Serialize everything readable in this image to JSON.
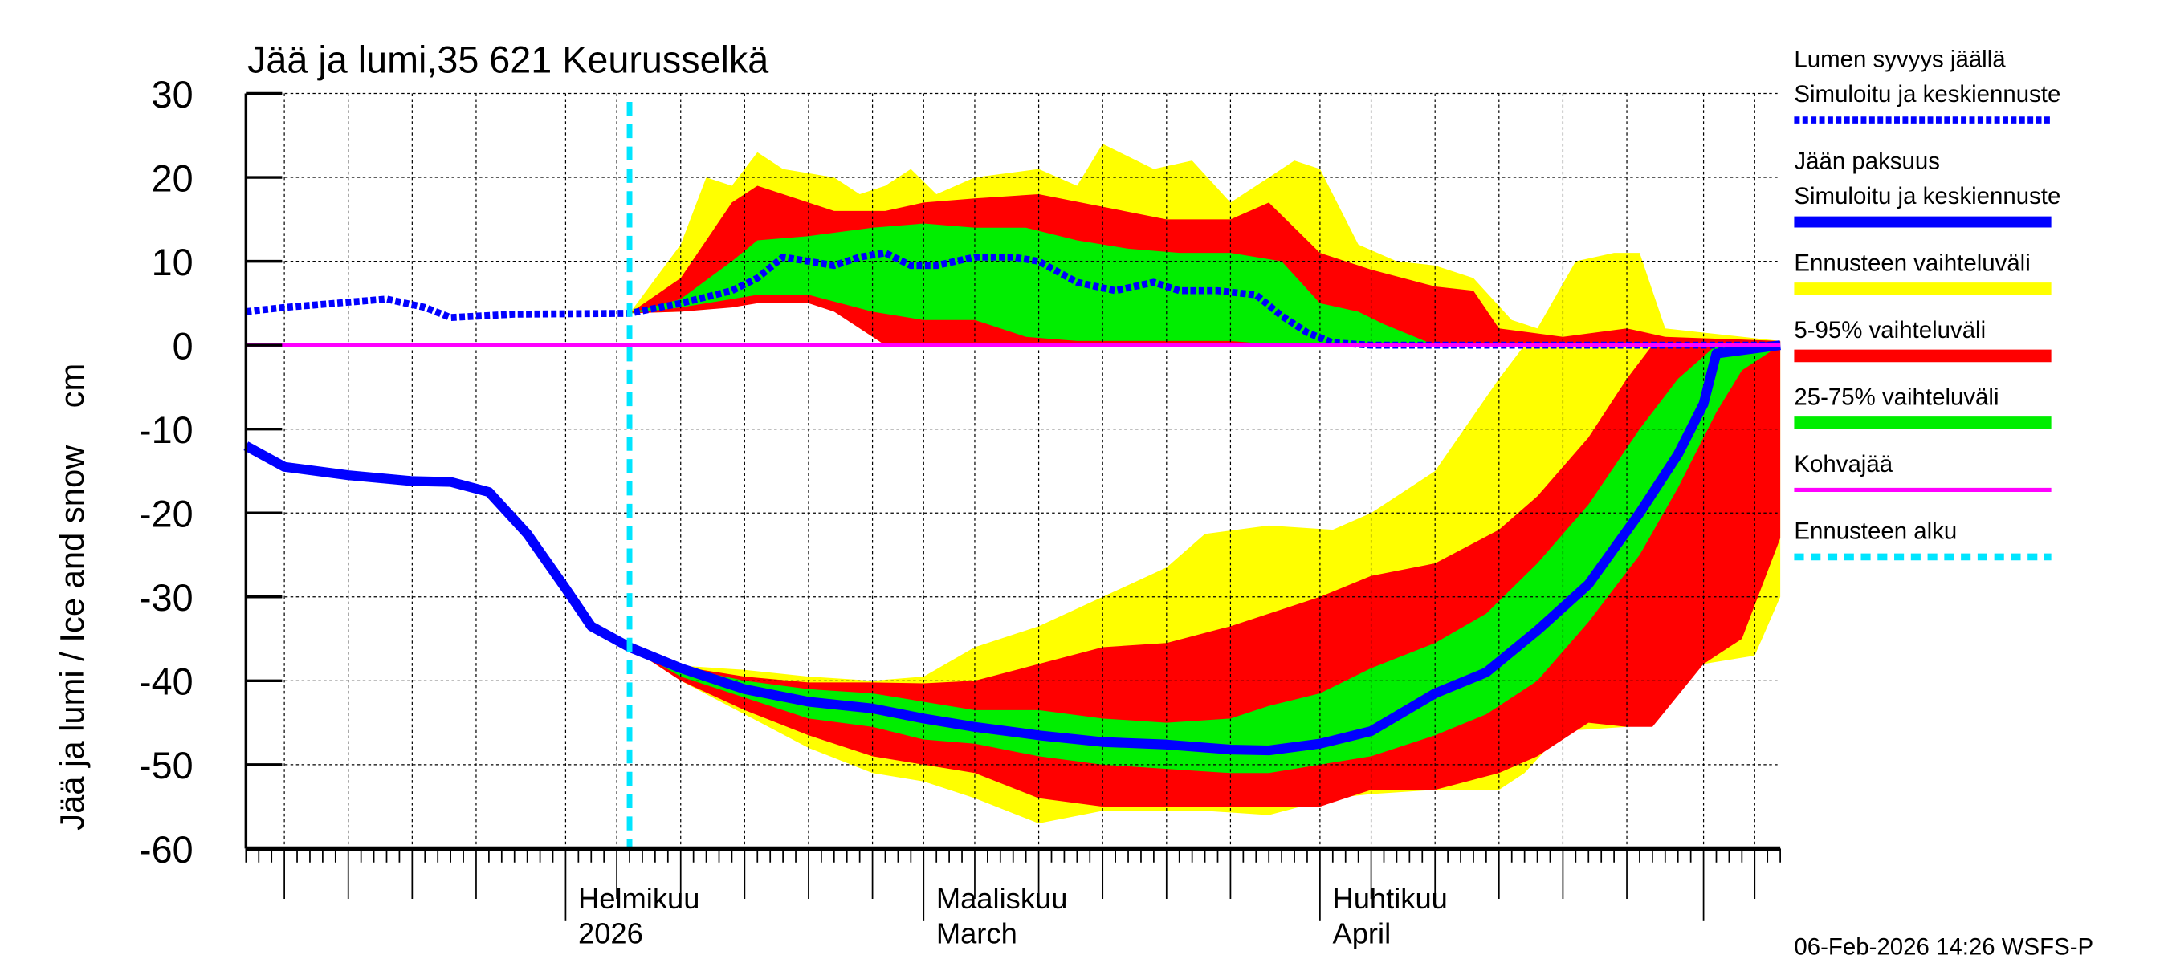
{
  "chart_data": {
    "type": "area",
    "title": "Jää ja lumi,35 621 Keurusselkä",
    "ylabel": "Jää ja lumi / Ice and snow    cm",
    "ylim": [
      -60,
      30
    ],
    "yticks": [
      30,
      20,
      10,
      0,
      -10,
      -20,
      -30,
      -40,
      -50,
      -60
    ],
    "xlim": [
      "2026-01-07",
      "2026-05-07"
    ],
    "month_labels": [
      {
        "date": "2026-02-01",
        "line1": "Helmikuu",
        "line2": "2026"
      },
      {
        "date": "2026-03-01",
        "line1": "Maaliskuu",
        "line2": "March"
      },
      {
        "date": "2026-04-01",
        "line1": "Huhtikuu",
        "line2": "April"
      }
    ],
    "grid": true,
    "forecast_start": "2026-02-06",
    "timestamp": "06-Feb-2026 14:26 WSFS-P",
    "legend_position": "right",
    "legend": [
      {
        "key": "snow",
        "line1": "Lumen syvyys jäällä",
        "line2": "Simuloitu ja keskiennuste",
        "color": "#0000ff",
        "style": "dotted"
      },
      {
        "key": "ice",
        "line1": "Jään paksuus",
        "line2": "Simuloitu ja keskiennuste",
        "color": "#0000ff",
        "style": "solid"
      },
      {
        "key": "range",
        "line1": "Ennusteen vaihteluväli",
        "color": "#ffff00",
        "style": "band"
      },
      {
        "key": "p5_95",
        "line1": "5-95% vaihteluväli",
        "color": "#ff0000",
        "style": "band"
      },
      {
        "key": "p25_75",
        "line1": "25-75% vaihteluväli",
        "color": "#00ee00",
        "style": "band"
      },
      {
        "key": "slush",
        "line1": "Kohvajää",
        "color": "#ff00ff",
        "style": "solid"
      },
      {
        "key": "start",
        "line1": "Ennusteen alku",
        "color": "#00e5ff",
        "style": "dashed"
      }
    ],
    "bands": {
      "snow_range": [
        [
          "2026-02-06",
          3.8,
          3.8
        ],
        [
          "2026-02-10",
          4,
          12
        ],
        [
          "2026-02-12",
          4.5,
          20
        ],
        [
          "2026-02-14",
          5,
          19
        ],
        [
          "2026-02-16",
          5,
          23
        ],
        [
          "2026-02-18",
          5,
          21
        ],
        [
          "2026-02-22",
          5,
          20
        ],
        [
          "2026-02-24",
          2,
          18
        ],
        [
          "2026-02-26",
          0,
          19
        ],
        [
          "2026-02-28",
          0,
          21
        ],
        [
          "2026-03-02",
          0,
          18
        ],
        [
          "2026-03-05",
          0,
          20
        ],
        [
          "2026-03-10",
          0,
          21
        ],
        [
          "2026-03-13",
          0,
          19
        ],
        [
          "2026-03-15",
          0,
          24
        ],
        [
          "2026-03-19",
          0,
          21
        ],
        [
          "2026-03-22",
          0,
          22
        ],
        [
          "2026-03-25",
          0,
          17
        ],
        [
          "2026-03-28",
          0,
          20
        ],
        [
          "2026-03-30",
          0,
          22
        ],
        [
          "2026-04-01",
          0,
          21
        ],
        [
          "2026-04-04",
          0,
          12
        ],
        [
          "2026-04-07",
          0,
          10
        ],
        [
          "2026-04-10",
          0,
          9.5
        ],
        [
          "2026-04-13",
          0,
          8
        ],
        [
          "2026-04-16",
          0,
          3
        ],
        [
          "2026-04-18",
          0,
          2
        ],
        [
          "2026-04-21",
          0,
          10
        ],
        [
          "2026-04-24",
          0,
          11
        ],
        [
          "2026-04-26",
          0,
          11
        ],
        [
          "2026-04-28",
          0,
          2
        ],
        [
          "2026-05-01",
          0,
          1.5
        ],
        [
          "2026-05-07",
          0,
          0.5
        ]
      ],
      "snow_p5_95": [
        [
          "2026-02-06",
          3.8,
          3.8
        ],
        [
          "2026-02-10",
          4,
          8
        ],
        [
          "2026-02-14",
          4.5,
          17
        ],
        [
          "2026-02-16",
          5,
          19
        ],
        [
          "2026-02-20",
          5,
          17
        ],
        [
          "2026-02-22",
          4,
          16
        ],
        [
          "2026-02-26",
          0,
          16
        ],
        [
          "2026-03-01",
          0,
          17
        ],
        [
          "2026-03-05",
          0,
          17.5
        ],
        [
          "2026-03-10",
          0,
          18
        ],
        [
          "2026-03-15",
          0,
          16.5
        ],
        [
          "2026-03-20",
          0,
          15
        ],
        [
          "2026-03-25",
          0,
          15
        ],
        [
          "2026-03-28",
          0,
          17
        ],
        [
          "2026-04-01",
          0,
          11
        ],
        [
          "2026-04-05",
          0,
          9
        ],
        [
          "2026-04-10",
          0,
          7
        ],
        [
          "2026-04-13",
          0,
          6.5
        ],
        [
          "2026-04-15",
          0,
          2
        ],
        [
          "2026-04-20",
          0,
          1
        ],
        [
          "2026-04-25",
          0,
          2
        ],
        [
          "2026-04-28",
          0,
          1
        ],
        [
          "2026-05-07",
          0,
          0.5
        ]
      ],
      "snow_p25_75": [
        [
          "2026-02-06",
          3.8,
          3.8
        ],
        [
          "2026-02-10",
          4.5,
          5.5
        ],
        [
          "2026-02-14",
          5.5,
          10
        ],
        [
          "2026-02-16",
          6,
          12.5
        ],
        [
          "2026-02-20",
          6,
          13
        ],
        [
          "2026-02-25",
          4,
          14
        ],
        [
          "2026-03-01",
          3,
          14.5
        ],
        [
          "2026-03-05",
          3,
          14
        ],
        [
          "2026-03-09",
          1,
          14
        ],
        [
          "2026-03-13",
          0.5,
          12.5
        ],
        [
          "2026-03-17",
          0.5,
          11.5
        ],
        [
          "2026-03-21",
          0.5,
          11
        ],
        [
          "2026-03-25",
          0.5,
          11
        ],
        [
          "2026-03-29",
          0,
          10
        ],
        [
          "2026-04-01",
          0,
          5
        ],
        [
          "2026-04-04",
          0,
          4
        ],
        [
          "2026-04-06",
          0,
          2.5
        ],
        [
          "2026-04-10",
          0,
          0
        ]
      ],
      "ice_range": [
        [
          "2026-02-06",
          -36,
          -36
        ],
        [
          "2026-02-10",
          -40,
          -38.2
        ],
        [
          "2026-02-15",
          -44,
          -38.7
        ],
        [
          "2026-02-20",
          -48,
          -39.5
        ],
        [
          "2026-02-25",
          -51,
          -40
        ],
        [
          "2026-03-01",
          -52,
          -39.5
        ],
        [
          "2026-03-05",
          -54,
          -36
        ],
        [
          "2026-03-10",
          -57,
          -33.5
        ],
        [
          "2026-03-15",
          -55.5,
          -30
        ],
        [
          "2026-03-20",
          -55.5,
          -26.5
        ],
        [
          "2026-03-23",
          -55.5,
          -22.5
        ],
        [
          "2026-03-28",
          -56,
          -21.5
        ],
        [
          "2026-04-02",
          -54,
          -22
        ],
        [
          "2026-04-05",
          -53.5,
          -20
        ],
        [
          "2026-04-10",
          -53,
          -15
        ],
        [
          "2026-04-15",
          -53,
          -4
        ],
        [
          "2026-04-17",
          -51,
          0
        ],
        [
          "2026-04-20",
          -46,
          0
        ],
        [
          "2026-04-25",
          -45.5,
          0
        ],
        [
          "2026-04-28",
          -43,
          0
        ],
        [
          "2026-05-01",
          -38,
          0
        ],
        [
          "2026-05-05",
          -37,
          0
        ],
        [
          "2026-05-07",
          -30,
          0
        ]
      ],
      "ice_p5_95": [
        [
          "2026-02-06",
          -36,
          -36
        ],
        [
          "2026-02-10",
          -40,
          -38.3
        ],
        [
          "2026-02-15",
          -43.5,
          -39.5
        ],
        [
          "2026-02-20",
          -46.5,
          -40.2
        ],
        [
          "2026-02-25",
          -49,
          -40.2
        ],
        [
          "2026-03-01",
          -50,
          -40.3
        ],
        [
          "2026-03-05",
          -51,
          -40
        ],
        [
          "2026-03-10",
          -54,
          -38
        ],
        [
          "2026-03-15",
          -55,
          -36
        ],
        [
          "2026-03-20",
          -55,
          -35.5
        ],
        [
          "2026-03-25",
          -55,
          -33.5
        ],
        [
          "2026-04-01",
          -55,
          -30
        ],
        [
          "2026-04-05",
          -53,
          -27.5
        ],
        [
          "2026-04-10",
          -53,
          -26
        ],
        [
          "2026-04-15",
          -51,
          -22
        ],
        [
          "2026-04-18",
          -49,
          -18
        ],
        [
          "2026-04-22",
          -45,
          -11
        ],
        [
          "2026-04-25",
          -45.5,
          -4
        ],
        [
          "2026-04-27",
          -45.5,
          0
        ],
        [
          "2026-05-01",
          -38,
          0
        ],
        [
          "2026-05-04",
          -35,
          0
        ],
        [
          "2026-05-07",
          -23,
          0
        ]
      ],
      "ice_p25_75": [
        [
          "2026-02-06",
          -36,
          -36
        ],
        [
          "2026-02-10",
          -39.5,
          -38.4
        ],
        [
          "2026-02-15",
          -42,
          -40
        ],
        [
          "2026-02-20",
          -44.5,
          -41
        ],
        [
          "2026-02-25",
          -45.5,
          -41.5
        ],
        [
          "2026-03-01",
          -47,
          -42.5
        ],
        [
          "2026-03-05",
          -47.5,
          -43.5
        ],
        [
          "2026-03-10",
          -49,
          -43.5
        ],
        [
          "2026-03-15",
          -50,
          -44.5
        ],
        [
          "2026-03-20",
          -50.5,
          -45
        ],
        [
          "2026-03-25",
          -51,
          -44.5
        ],
        [
          "2026-03-28",
          -51,
          -43
        ],
        [
          "2026-04-01",
          -50,
          -41.5
        ],
        [
          "2026-04-05",
          -49,
          -38.5
        ],
        [
          "2026-04-10",
          -46.5,
          -35.5
        ],
        [
          "2026-04-14",
          -44,
          -32
        ],
        [
          "2026-04-18",
          -40,
          -26
        ],
        [
          "2026-04-22",
          -33,
          -19
        ],
        [
          "2026-04-26",
          -25,
          -10
        ],
        [
          "2026-04-29",
          -17,
          -4
        ],
        [
          "2026-05-02",
          -8,
          0
        ],
        [
          "2026-05-04",
          -3,
          0
        ],
        [
          "2026-05-07",
          0,
          0
        ]
      ]
    },
    "series": [
      {
        "key": "snow",
        "points": [
          [
            "2026-01-07",
            4
          ],
          [
            "2026-01-10",
            4.5
          ],
          [
            "2026-01-14",
            5
          ],
          [
            "2026-01-18",
            5.5
          ],
          [
            "2026-01-21",
            4.5
          ],
          [
            "2026-01-23",
            3.3
          ],
          [
            "2026-01-28",
            3.7
          ],
          [
            "2026-02-06",
            3.8
          ],
          [
            "2026-02-10",
            5
          ],
          [
            "2026-02-14",
            6.5
          ],
          [
            "2026-02-16",
            8
          ],
          [
            "2026-02-18",
            10.5
          ],
          [
            "2026-02-20",
            10
          ],
          [
            "2026-02-22",
            9.5
          ],
          [
            "2026-02-24",
            10.5
          ],
          [
            "2026-02-26",
            11
          ],
          [
            "2026-02-28",
            9.5
          ],
          [
            "2026-03-02",
            9.5
          ],
          [
            "2026-03-05",
            10.5
          ],
          [
            "2026-03-08",
            10.5
          ],
          [
            "2026-03-10",
            10
          ],
          [
            "2026-03-13",
            7.5
          ],
          [
            "2026-03-16",
            6.5
          ],
          [
            "2026-03-19",
            7.5
          ],
          [
            "2026-03-21",
            6.5
          ],
          [
            "2026-03-24",
            6.5
          ],
          [
            "2026-03-27",
            6
          ],
          [
            "2026-03-29",
            3.5
          ],
          [
            "2026-03-31",
            1.5
          ],
          [
            "2026-04-02",
            0.3
          ],
          [
            "2026-04-05",
            0
          ],
          [
            "2026-05-07",
            0
          ]
        ]
      },
      {
        "key": "ice",
        "points": [
          [
            "2026-01-07",
            -12
          ],
          [
            "2026-01-10",
            -14.5
          ],
          [
            "2026-01-15",
            -15.5
          ],
          [
            "2026-01-20",
            -16.2
          ],
          [
            "2026-01-23",
            -16.3
          ],
          [
            "2026-01-26",
            -17.5
          ],
          [
            "2026-01-29",
            -22.5
          ],
          [
            "2026-02-01",
            -29
          ],
          [
            "2026-02-03",
            -33.5
          ],
          [
            "2026-02-06",
            -36
          ],
          [
            "2026-02-10",
            -38.5
          ],
          [
            "2026-02-15",
            -41
          ],
          [
            "2026-02-20",
            -42.5
          ],
          [
            "2026-02-25",
            -43.3
          ],
          [
            "2026-03-01",
            -44.5
          ],
          [
            "2026-03-05",
            -45.5
          ],
          [
            "2026-03-10",
            -46.5
          ],
          [
            "2026-03-15",
            -47.3
          ],
          [
            "2026-03-20",
            -47.6
          ],
          [
            "2026-03-25",
            -48.2
          ],
          [
            "2026-03-28",
            -48.3
          ],
          [
            "2026-04-01",
            -47.5
          ],
          [
            "2026-04-05",
            -46
          ],
          [
            "2026-04-10",
            -41.5
          ],
          [
            "2026-04-14",
            -39
          ],
          [
            "2026-04-18",
            -34
          ],
          [
            "2026-04-22",
            -28.5
          ],
          [
            "2026-04-26",
            -20
          ],
          [
            "2026-04-29",
            -13
          ],
          [
            "2026-05-01",
            -7
          ],
          [
            "2026-05-02",
            -1
          ],
          [
            "2026-05-07",
            0
          ]
        ]
      },
      {
        "key": "slush",
        "points": [
          [
            "2026-01-07",
            0
          ],
          [
            "2026-05-07",
            0
          ]
        ]
      }
    ]
  }
}
